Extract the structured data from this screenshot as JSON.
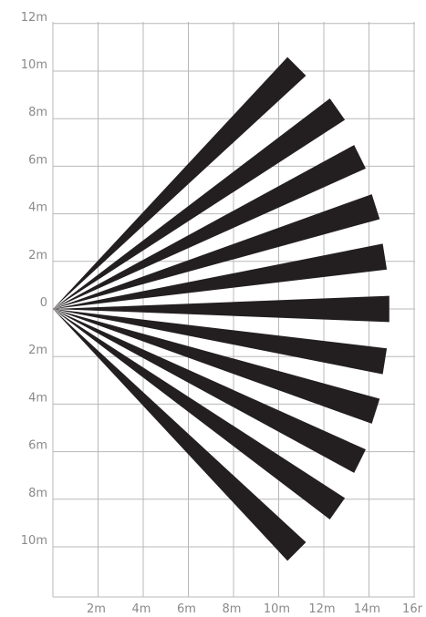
{
  "chart_data": {
    "type": "detection-pattern",
    "y_axis": {
      "values": [
        12,
        10,
        8,
        6,
        4,
        2,
        0,
        -2,
        -4,
        -6,
        -8,
        -10
      ],
      "labels": [
        "12m",
        "10m",
        "8m",
        "6m",
        "4m",
        "2m",
        "0",
        "2m",
        "4m",
        "6m",
        "8m",
        "10m"
      ]
    },
    "x_axis": {
      "values": [
        2,
        4,
        6,
        8,
        10,
        12,
        14,
        16
      ],
      "labels": [
        "2m",
        "4m",
        "6m",
        "8m",
        "10m",
        "12m",
        "14m",
        "16r"
      ]
    },
    "origin": {
      "x": 0,
      "y": 0
    },
    "beams": [
      {
        "end_x": 10.8,
        "end_y": 10.2
      },
      {
        "end_x": 12.6,
        "end_y": 8.4
      },
      {
        "end_x": 13.6,
        "end_y": 6.4
      },
      {
        "end_x": 14.3,
        "end_y": 4.3
      },
      {
        "end_x": 14.7,
        "end_y": 2.2
      },
      {
        "end_x": 14.9,
        "end_y": 0.0
      },
      {
        "end_x": 14.7,
        "end_y": -2.2
      },
      {
        "end_x": 14.3,
        "end_y": -4.3
      },
      {
        "end_x": 13.6,
        "end_y": -6.4
      },
      {
        "end_x": 12.6,
        "end_y": -8.4
      },
      {
        "end_x": 10.8,
        "end_y": -10.2
      }
    ],
    "beam_width_m": 1.1,
    "grid": true,
    "colors": {
      "beam": "#231f20",
      "grid": "#b8b8b8",
      "labels": "#8a8a8a"
    }
  }
}
